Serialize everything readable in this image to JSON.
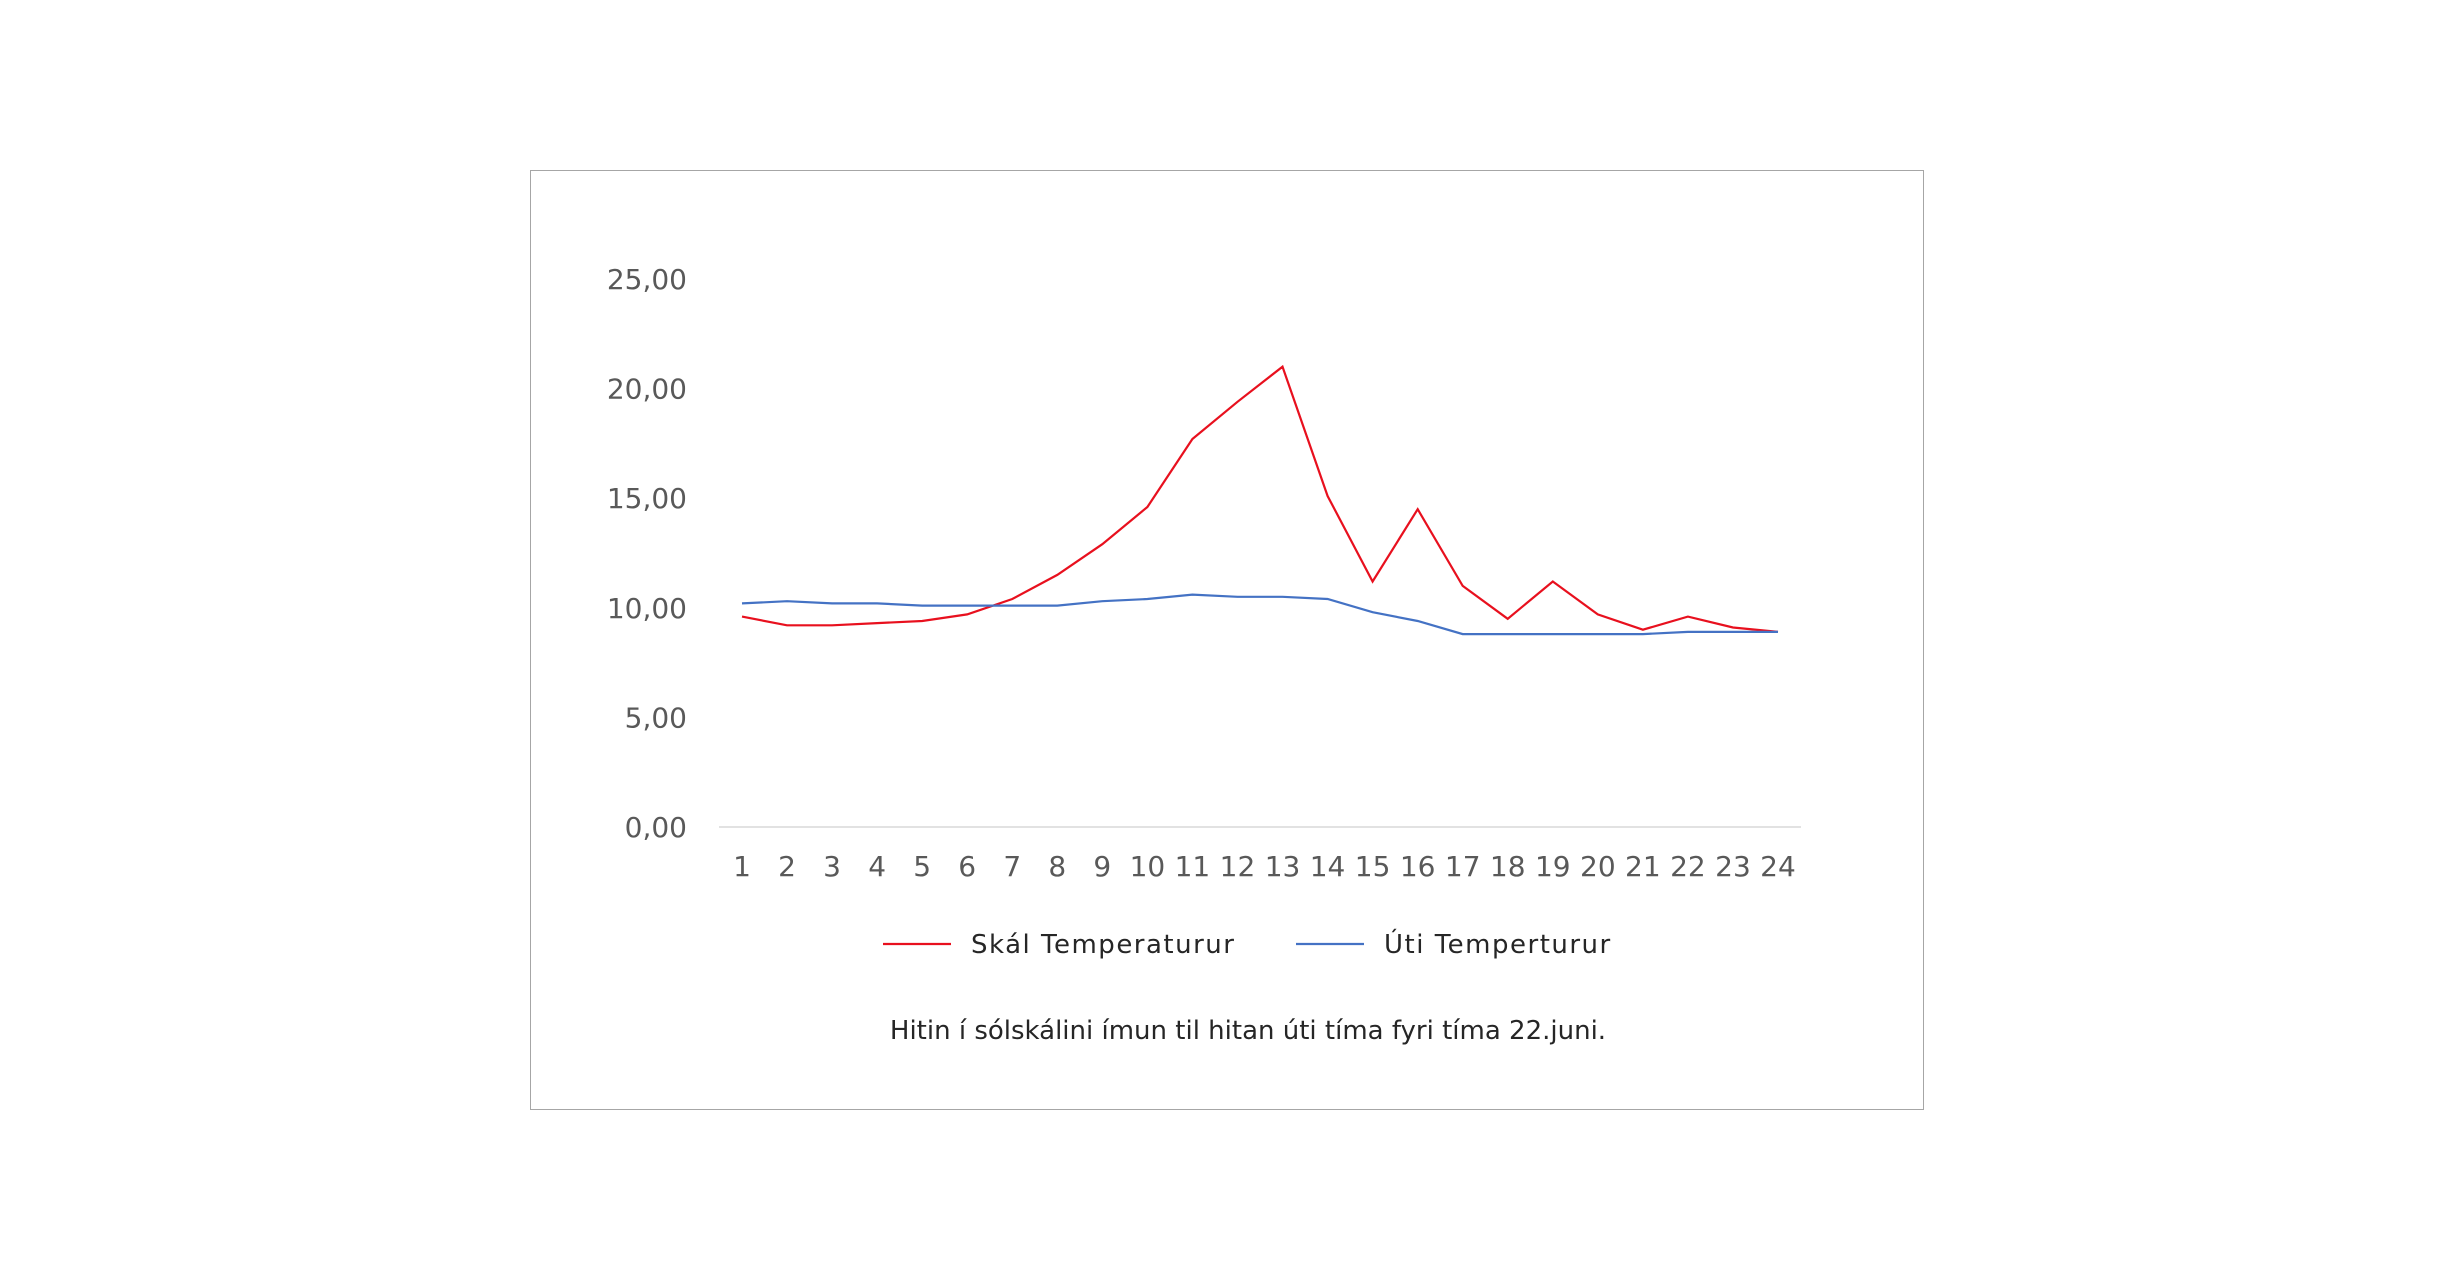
{
  "chart_data": {
    "type": "line",
    "categories": [
      "1",
      "2",
      "3",
      "4",
      "5",
      "6",
      "7",
      "8",
      "9",
      "10",
      "11",
      "12",
      "13",
      "14",
      "15",
      "16",
      "17",
      "18",
      "19",
      "20",
      "21",
      "22",
      "23",
      "24"
    ],
    "series": [
      {
        "name": "Skál Temperaturur",
        "color": "#e8101e",
        "values": [
          9.6,
          9.2,
          9.2,
          9.3,
          9.4,
          9.7,
          10.4,
          11.5,
          12.9,
          14.6,
          17.7,
          19.4,
          21.0,
          15.1,
          11.2,
          14.5,
          11.0,
          9.5,
          11.2,
          9.7,
          9.0,
          9.6,
          9.1,
          8.9
        ]
      },
      {
        "name": "Úti Temperturur",
        "color": "#4472c4",
        "values": [
          10.2,
          10.3,
          10.2,
          10.2,
          10.1,
          10.1,
          10.1,
          10.1,
          10.3,
          10.4,
          10.6,
          10.5,
          10.5,
          10.4,
          9.8,
          9.4,
          8.8,
          8.8,
          8.8,
          8.8,
          8.8,
          8.9,
          8.9,
          8.9
        ]
      }
    ],
    "ylim": [
      0,
      25
    ],
    "yticks": [
      "0,00",
      "5,00",
      "10,00",
      "15,00",
      "20,00",
      "25,00"
    ],
    "ytick_values": [
      0,
      5,
      10,
      15,
      20,
      25
    ],
    "grid": false,
    "legend_position": "bottom",
    "caption": "Hitin í sólskálini ímun til hitan úti tíma fyri tíma 22.juni.",
    "axis_color": "#d9d9d9"
  }
}
